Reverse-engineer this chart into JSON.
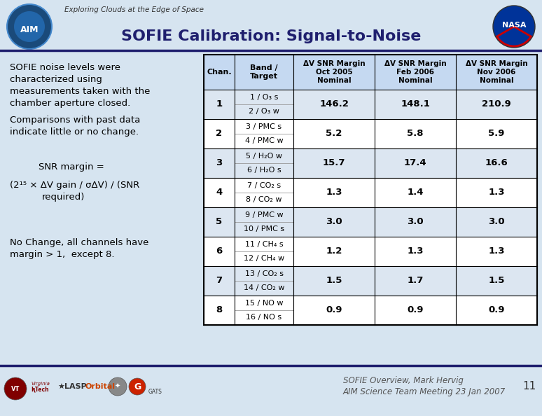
{
  "title": "SOFIE Calibration: Signal-to-Noise",
  "slide_bg": "#d6e4f0",
  "header_line_color": "#1f1f6e",
  "title_color": "#1f1f6e",
  "table_header_bg": "#c5d9f1",
  "row_bg_odd": "#dce6f1",
  "row_bg_even": "#ffffff",
  "col_headers": [
    "Chan.",
    "Band /\nTarget",
    "ΔV SNR Margin\nOct 2005\nNominal",
    "ΔV SNR Margin\nFeb 2006\nNominal",
    "ΔV SNR Margin\nNov 2006\nNominal"
  ],
  "rows": [
    {
      "chan": "1",
      "band_top": "1 / O₃ s",
      "band_bot": "2 / O₃ w",
      "oct05": "146.2",
      "feb06": "148.1",
      "nov06": "210.9"
    },
    {
      "chan": "2",
      "band_top": "3 / PMC s",
      "band_bot": "4 / PMC w",
      "oct05": "5.2",
      "feb06": "5.8",
      "nov06": "5.9"
    },
    {
      "chan": "3",
      "band_top": "5 / H₂O w",
      "band_bot": "6 / H₂O s",
      "oct05": "15.7",
      "feb06": "17.4",
      "nov06": "16.6"
    },
    {
      "chan": "4",
      "band_top": "7 / CO₂ s",
      "band_bot": "8 / CO₂ w",
      "oct05": "1.3",
      "feb06": "1.4",
      "nov06": "1.3"
    },
    {
      "chan": "5",
      "band_top": "9 / PMC w",
      "band_bot": "10 / PMC s",
      "oct05": "3.0",
      "feb06": "3.0",
      "nov06": "3.0"
    },
    {
      "chan": "6",
      "band_top": "11 / CH₄ s",
      "band_bot": "12 / CH₄ w",
      "oct05": "1.2",
      "feb06": "1.3",
      "nov06": "1.3"
    },
    {
      "chan": "7",
      "band_top": "13 / CO₂ s",
      "band_bot": "14 / CO₂ w",
      "oct05": "1.5",
      "feb06": "1.7",
      "nov06": "1.5"
    },
    {
      "chan": "8",
      "band_top": "15 / NO w",
      "band_bot": "16 / NO s",
      "oct05": "0.9",
      "feb06": "0.9",
      "nov06": "0.9"
    }
  ],
  "footer_text1": "SOFIE Overview, Mark Hervig",
  "footer_text2": "AIM Science Team Meeting 23 Jan 2007",
  "page_num": "11",
  "explore_text": "Exploring Clouds at the Edge of Space"
}
